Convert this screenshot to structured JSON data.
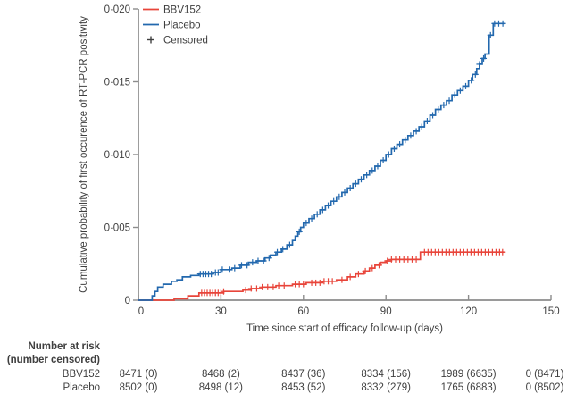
{
  "chart_data": {
    "type": "line",
    "subtype": "kaplan-meier-cumulative-incidence-step",
    "title": "",
    "xlabel": "Time since start of efficacy follow-up (days)",
    "ylabel": "Cumulative probability of first occurence of RT-PCR positivity",
    "xlim": [
      0,
      150
    ],
    "ylim": [
      0,
      0.02
    ],
    "x_ticks": [
      0,
      30,
      60,
      90,
      120,
      150
    ],
    "x_tick_labels": [
      "0",
      "30",
      "60",
      "90",
      "120",
      "150"
    ],
    "y_ticks": [
      0,
      0.005,
      0.01,
      0.015,
      0.02
    ],
    "y_tick_labels": [
      "0",
      "0·005",
      "0·010",
      "0·015",
      "0·020"
    ],
    "grid": false,
    "legend_position": "top-left-inside",
    "legend": [
      {
        "label": "BBV152",
        "type": "line",
        "color": "#e8453a"
      },
      {
        "label": "Placebo",
        "type": "line",
        "color": "#2268ae"
      },
      {
        "label": "Censored",
        "type": "plus",
        "color": "#3f3f3f"
      }
    ],
    "series": [
      {
        "name": "BBV152",
        "color": "#e8453a",
        "steps": [
          [
            0,
            0
          ],
          [
            13,
            0.0001
          ],
          [
            18,
            0.0003
          ],
          [
            22,
            0.0005
          ],
          [
            31,
            0.0006
          ],
          [
            38,
            0.0007
          ],
          [
            41,
            0.0008
          ],
          [
            45,
            0.0009
          ],
          [
            50,
            0.001
          ],
          [
            56,
            0.0011
          ],
          [
            61,
            0.0012
          ],
          [
            67,
            0.0013
          ],
          [
            72,
            0.0014
          ],
          [
            76,
            0.0016
          ],
          [
            79,
            0.0018
          ],
          [
            82,
            0.002
          ],
          [
            84,
            0.0022
          ],
          [
            86,
            0.0024
          ],
          [
            88,
            0.0026
          ],
          [
            90,
            0.0027
          ],
          [
            92,
            0.0028
          ],
          [
            102.5,
            0.0033
          ],
          [
            133,
            0.0033
          ]
        ],
        "censor_days": [
          23,
          24,
          25,
          26,
          27,
          28,
          29,
          30,
          31,
          39,
          41,
          43,
          45,
          47,
          49,
          51,
          53,
          57,
          58.5,
          60,
          63,
          64.5,
          66,
          67.5,
          69,
          70.5,
          74,
          77,
          80,
          82.5,
          85,
          87.5,
          90.5,
          92,
          93.5,
          95,
          96.5,
          98,
          99.5,
          101,
          104,
          105.3,
          106.6,
          107.9,
          109.2,
          110.5,
          111.8,
          113.1,
          114.4,
          115.7,
          117,
          118.3,
          119.6,
          120.9,
          122.2,
          123.5,
          124.8,
          126.1,
          127.4,
          128.7,
          130,
          131.3,
          132.4
        ]
      },
      {
        "name": "Placebo",
        "color": "#2268ae",
        "steps": [
          [
            0,
            0
          ],
          [
            5,
            0.0003
          ],
          [
            6,
            0.0006
          ],
          [
            7,
            0.0009
          ],
          [
            9,
            0.0011
          ],
          [
            12,
            0.0013
          ],
          [
            14,
            0.0014
          ],
          [
            16,
            0.0016
          ],
          [
            19,
            0.0017
          ],
          [
            22,
            0.0018
          ],
          [
            27,
            0.0019
          ],
          [
            30,
            0.0021
          ],
          [
            34,
            0.0022
          ],
          [
            37,
            0.0024
          ],
          [
            40,
            0.0026
          ],
          [
            43,
            0.0027
          ],
          [
            46,
            0.0029
          ],
          [
            48,
            0.0031
          ],
          [
            50,
            0.0033
          ],
          [
            52,
            0.0035
          ],
          [
            54,
            0.0038
          ],
          [
            56,
            0.0041
          ],
          [
            57,
            0.0044
          ],
          [
            58,
            0.0047
          ],
          [
            59,
            0.005
          ],
          [
            60,
            0.0053
          ],
          [
            62,
            0.0056
          ],
          [
            64,
            0.0059
          ],
          [
            66,
            0.0062
          ],
          [
            68,
            0.0065
          ],
          [
            70,
            0.0068
          ],
          [
            72,
            0.0071
          ],
          [
            74,
            0.0074
          ],
          [
            76,
            0.0077
          ],
          [
            78,
            0.008
          ],
          [
            80,
            0.0083
          ],
          [
            82,
            0.0086
          ],
          [
            84,
            0.0089
          ],
          [
            86,
            0.0092
          ],
          [
            88,
            0.0096
          ],
          [
            90,
            0.01
          ],
          [
            92,
            0.0104
          ],
          [
            94,
            0.0107
          ],
          [
            96,
            0.011
          ],
          [
            98,
            0.0113
          ],
          [
            100,
            0.0116
          ],
          [
            102,
            0.0119
          ],
          [
            104,
            0.0123
          ],
          [
            106,
            0.0127
          ],
          [
            108,
            0.0131
          ],
          [
            110,
            0.0134
          ],
          [
            112,
            0.0137
          ],
          [
            114,
            0.0141
          ],
          [
            116,
            0.0144
          ],
          [
            118,
            0.0147
          ],
          [
            120,
            0.0151
          ],
          [
            121.5,
            0.0155
          ],
          [
            123,
            0.0159
          ],
          [
            124,
            0.0162
          ],
          [
            125,
            0.0166
          ],
          [
            126,
            0.0169
          ],
          [
            127.5,
            0.0182
          ],
          [
            129,
            0.019
          ],
          [
            133,
            0.019
          ]
        ],
        "censor_days": [
          22.5,
          23.5,
          24.5,
          25.5,
          26.5,
          28,
          29,
          30.5,
          33,
          35,
          37.5,
          39.5,
          41.5,
          43.5,
          45.5,
          47.5,
          50.5,
          52.5,
          55,
          58.5,
          61,
          63,
          65,
          67,
          69,
          71,
          73,
          75,
          77,
          79,
          81,
          83,
          85,
          87,
          89,
          91,
          93,
          95,
          97,
          99,
          101,
          103,
          105,
          107,
          109,
          111,
          113,
          115,
          117,
          119,
          121,
          122.5,
          124,
          125.5,
          128,
          129.5,
          131,
          132.5
        ]
      }
    ]
  },
  "risk_table": {
    "header_line1": "Number at risk",
    "header_line2": "(number censored)",
    "time_points": [
      0,
      30,
      60,
      90,
      120,
      150
    ],
    "rows": [
      {
        "label": "BBV152",
        "values": [
          "8471 (0)",
          "8468 (2)",
          "8437 (36)",
          "8334 (156)",
          "1989 (6635)",
          "0 (8471)"
        ]
      },
      {
        "label": "Placebo",
        "values": [
          "8502 (0)",
          "8498 (12)",
          "8453 (52)",
          "8332 (279)",
          "1765 (6883)",
          "0 (8502)"
        ]
      }
    ]
  },
  "colors": {
    "text": "#3f3f3f",
    "axis": "#8c8c8c",
    "bbv152": "#e8453a",
    "placebo": "#2268ae",
    "background": "#ffffff"
  }
}
